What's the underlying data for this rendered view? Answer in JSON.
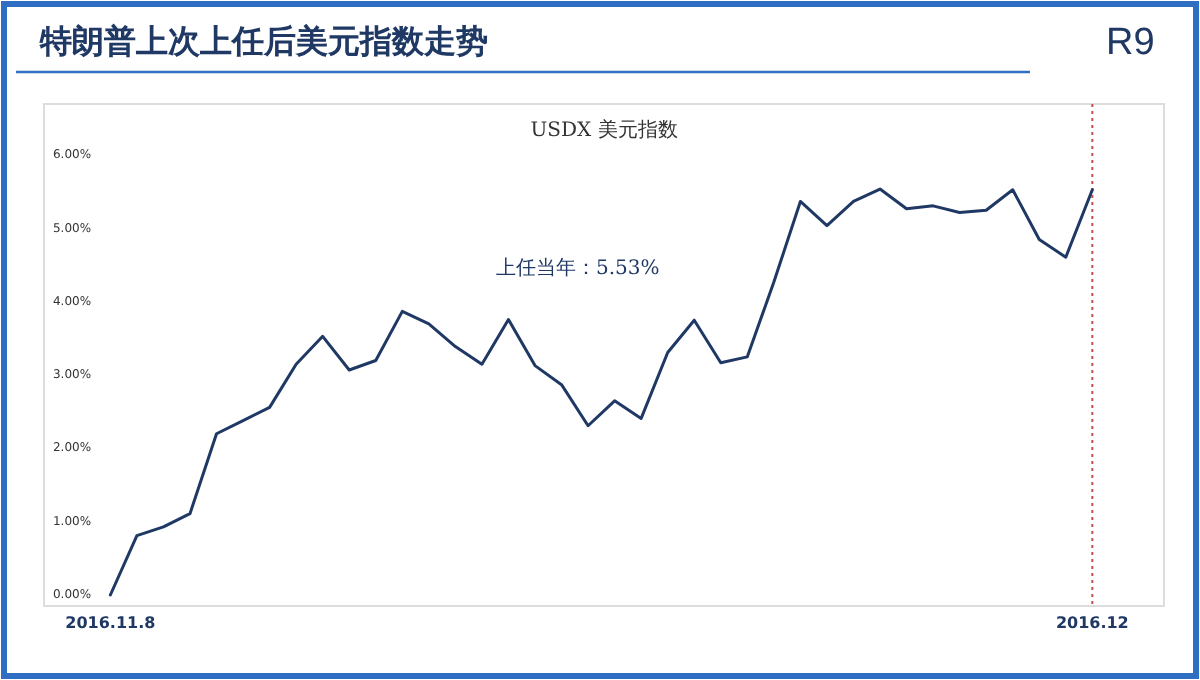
{
  "chart_data": {
    "type": "line",
    "title": "特朗普上次上任后美元指数走势",
    "subtitle": "USDX 美元指数",
    "annotations": [
      "R9",
      "上任当年：5.53%"
    ],
    "categories": [
      "2016.11.8",
      null,
      null,
      null,
      null,
      null,
      null,
      null,
      null,
      null,
      null,
      null,
      null,
      null,
      null,
      null,
      null,
      null,
      null,
      null,
      null,
      null,
      null,
      null,
      null,
      null,
      null,
      null,
      null,
      null,
      null,
      null,
      null,
      null,
      null,
      null,
      null,
      "2016.12"
    ],
    "series": [
      {
        "color": "#1f3864",
        "values": [
          0,
          0.81,
          0.93,
          1.11,
          2.2,
          2.38,
          2.56,
          3.15,
          3.53,
          3.07,
          3.2,
          3.87,
          3.7,
          3.39,
          3.15,
          3.76,
          3.13,
          2.87,
          2.31,
          2.65,
          2.41,
          3.31,
          3.75,
          3.17,
          3.25,
          4.27,
          5.37,
          5.04,
          5.37,
          5.54,
          5.27,
          5.31,
          5.22,
          5.25,
          5.53,
          4.85,
          4.61,
          5.53
        ]
      }
    ],
    "ylim": [
      -0.15,
      6.7
    ],
    "yticks": [
      {
        "value": 0,
        "label": "0.00%"
      },
      {
        "value": 1,
        "label": "1.00%"
      },
      {
        "value": 2,
        "label": "2.00%"
      },
      {
        "value": 3,
        "label": "3.00%"
      },
      {
        "value": 4,
        "label": "4.00%"
      },
      {
        "value": 5,
        "label": "5.00%"
      },
      {
        "value": 6,
        "label": "6.00%"
      }
    ],
    "grid": false,
    "marker": "none",
    "line_style": "solid",
    "ref_lines": [
      {
        "axis": "x",
        "value": "2016.12",
        "color": "#c0504d",
        "line_style": "dotted"
      }
    ]
  }
}
